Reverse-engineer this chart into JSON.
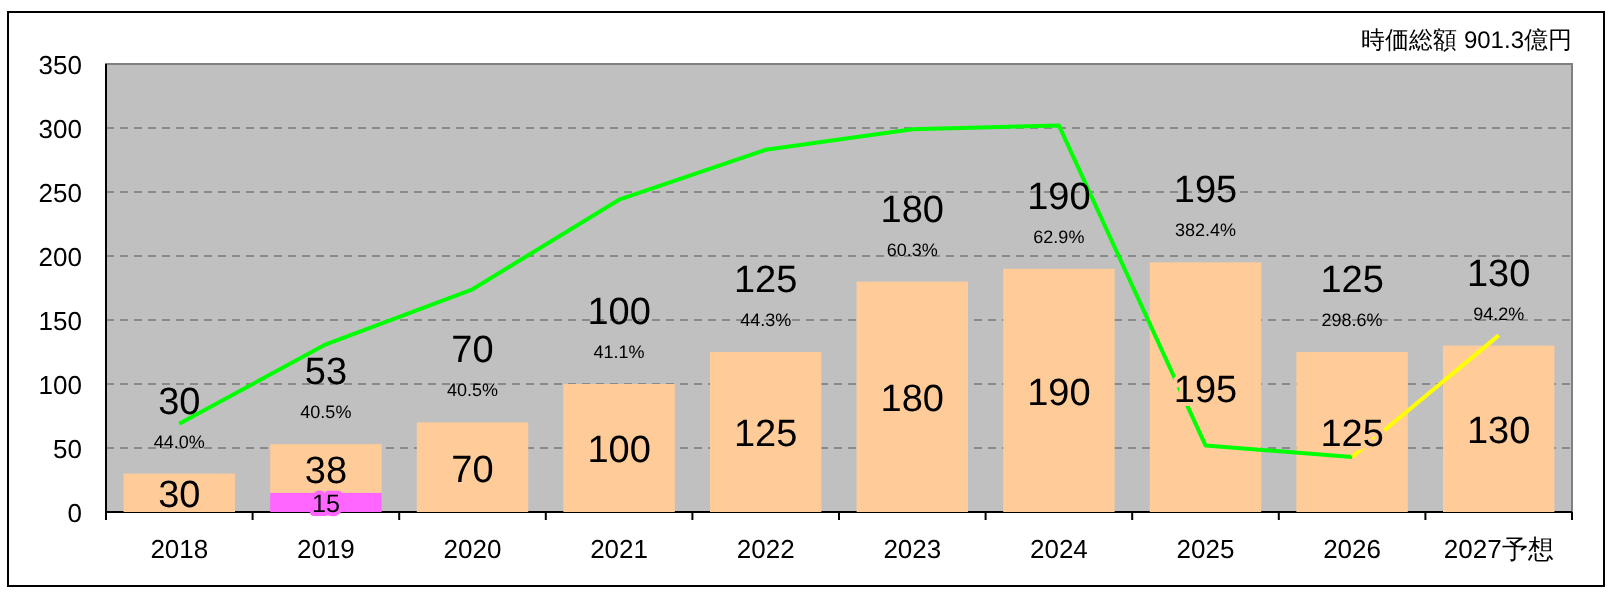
{
  "chart_data": {
    "type": "bar",
    "stacked": true,
    "categories": [
      "2018",
      "2019",
      "2020",
      "2021",
      "2022",
      "2023",
      "2024",
      "2025",
      "2026",
      "2027予想"
    ],
    "series": [
      {
        "color": "#ff66ff",
        "values": [
          null,
          15,
          null,
          null,
          null,
          null,
          null,
          null,
          null,
          null
        ],
        "value_labels": [
          null,
          "15",
          null,
          null,
          null,
          null,
          null,
          null,
          null,
          null
        ]
      },
      {
        "color": "#ffcc99",
        "values": [
          30,
          38,
          70,
          100,
          125,
          180,
          190,
          195,
          125,
          130
        ],
        "value_labels": [
          "30",
          "38",
          "70",
          "100",
          "125",
          "180",
          "190",
          "195",
          "125",
          "130"
        ]
      },
      {
        "type": "line",
        "color": "#00ff00",
        "values": [
          69,
          131,
          174,
          244,
          283,
          299,
          302,
          52,
          43,
          null
        ]
      },
      {
        "type": "line",
        "color": "#ffff00",
        "values": [
          null,
          null,
          null,
          null,
          null,
          null,
          null,
          null,
          43,
          138
        ]
      }
    ],
    "totals": [
      "30",
      "53",
      "70",
      "100",
      "125",
      "180",
      "190",
      "195",
      "125",
      "130"
    ],
    "ylim": [
      0,
      350
    ],
    "yticks": [
      0,
      50,
      100,
      150,
      200,
      250,
      300,
      350
    ],
    "grid": "y",
    "line_style": "solid",
    "annotations": [
      "時価総額  901.3億円",
      {
        "text": "44.0%",
        "x": "2018",
        "y": 30
      },
      {
        "text": "40.5%",
        "x": "2019",
        "y": 53
      },
      {
        "text": "40.5%",
        "x": "2020",
        "y": 70
      },
      {
        "text": "41.1%",
        "x": "2021",
        "y": 100
      },
      {
        "text": "44.3%",
        "x": "2022",
        "y": 125
      },
      {
        "text": "60.3%",
        "x": "2023",
        "y": 180
      },
      {
        "text": "62.9%",
        "x": "2024",
        "y": 190
      },
      {
        "text": "382.4%",
        "x": "2025",
        "y": 195
      },
      {
        "text": "298.6%",
        "x": "2026",
        "y": 125
      },
      {
        "text": "94.2%",
        "x": "2027予想",
        "y": 130
      }
    ]
  }
}
